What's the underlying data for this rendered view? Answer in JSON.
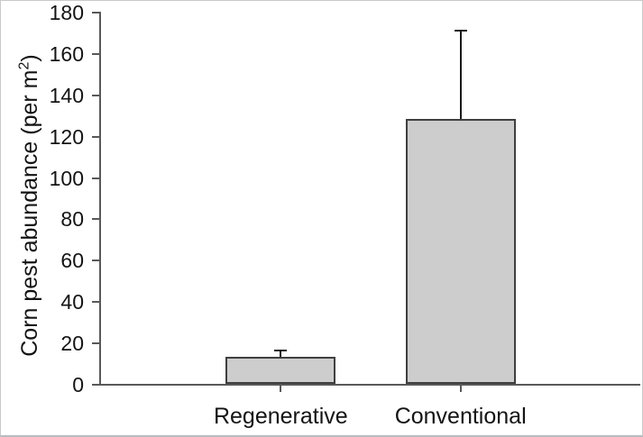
{
  "figure": {
    "background": "#ffffff",
    "border_color": "#c9c9c9"
  },
  "chart_data": {
    "type": "bar",
    "categories": [
      "Regenerative",
      "Conventional"
    ],
    "values": [
      13,
      128
    ],
    "errors_upper": [
      3,
      43
    ],
    "ylabel": "Corn pest abundance (per m²)",
    "ylabel_parts": {
      "pre": "Corn pest abundance (per m",
      "sup": "2",
      "post": ")"
    },
    "xlabel": "",
    "ylim": [
      0,
      180
    ],
    "yticks": [
      0,
      20,
      40,
      60,
      80,
      100,
      120,
      140,
      160,
      180
    ],
    "grid": false,
    "legend": false,
    "bar_fill": "#cdcdcd",
    "bar_border": "#3f3f3f",
    "axis_color": "#595959",
    "error_bar_color": "#1a1a1a",
    "text_color": "#141414"
  }
}
